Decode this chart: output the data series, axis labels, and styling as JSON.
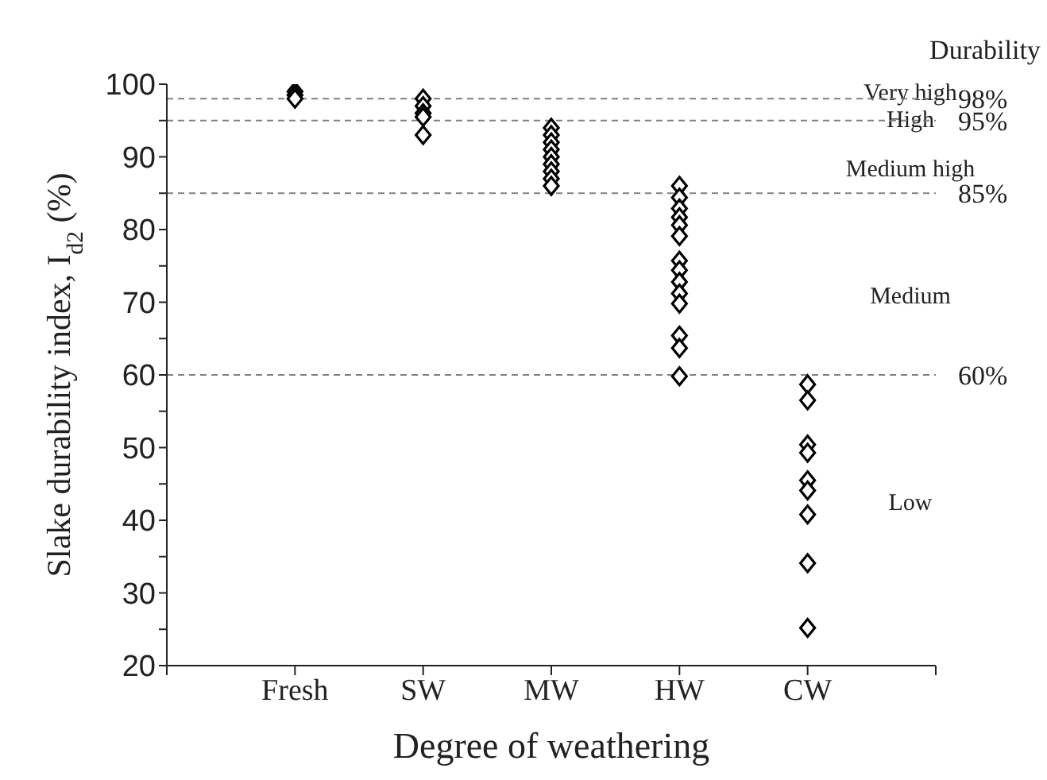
{
  "chart_data": {
    "type": "scatter",
    "xlabel": "Degree of weathering",
    "ylabel": "Slake durability index, I$_{d2}$ (%)",
    "categories": [
      "Fresh",
      "SW",
      "MW",
      "HW",
      "CW"
    ],
    "series": [
      {
        "color": "#000000",
        "marker": "diamond",
        "x": [
          "Fresh",
          "Fresh",
          "Fresh",
          "SW",
          "SW",
          "SW",
          "SW",
          "SW",
          "MW",
          "MW",
          "MW",
          "MW",
          "MW",
          "MW",
          "MW",
          "MW",
          "MW",
          "HW",
          "HW",
          "HW",
          "HW",
          "HW",
          "HW",
          "HW",
          "HW",
          "HW",
          "HW",
          "HW",
          "HW",
          "HW",
          "HW",
          "CW",
          "CW",
          "CW",
          "CW",
          "CW",
          "CW",
          "CW",
          "CW",
          "CW"
        ],
        "values": [
          99,
          98.5,
          98,
          98,
          97,
          96,
          95.5,
          93,
          94,
          93,
          92,
          91,
          90,
          89,
          88,
          87,
          86,
          86,
          84.4,
          82.9,
          81.7,
          80.6,
          79.1,
          75.7,
          74.4,
          72.8,
          71.2,
          69.8,
          65.4,
          63.7,
          59.8,
          58.7,
          56.5,
          50.4,
          49.3,
          45.5,
          44.1,
          40.8,
          34.1,
          25.2
        ]
      }
    ],
    "ylim": [
      20,
      100
    ],
    "yticks": [
      20,
      {
        "value": 25,
        "label": null
      },
      30,
      {
        "value": 35,
        "label": null
      },
      40,
      {
        "value": 45,
        "label": null
      },
      50,
      {
        "value": 55,
        "label": null
      },
      60,
      {
        "value": 65,
        "label": null
      },
      70,
      {
        "value": 75,
        "label": null
      },
      80,
      {
        "value": 85,
        "label": null
      },
      90,
      {
        "value": 95,
        "label": null
      },
      100
    ],
    "ref_lines": [
      {
        "axis": "y",
        "value": 98,
        "label": "98%",
        "color": "#808080",
        "line_style": "dashed"
      },
      {
        "axis": "y",
        "value": 95,
        "label": "95%",
        "color": "#808080",
        "line_style": "dashed"
      },
      {
        "axis": "y",
        "value": 85,
        "label": "85%",
        "color": "#808080",
        "line_style": "dashed"
      },
      {
        "axis": "y",
        "value": 60,
        "label": "60%",
        "color": "#808080",
        "line_style": "dashed"
      }
    ],
    "annotations": [
      "Durability",
      "Very high",
      "High",
      "Medium high",
      "Medium",
      "Low"
    ],
    "grid": false,
    "legend": false
  }
}
